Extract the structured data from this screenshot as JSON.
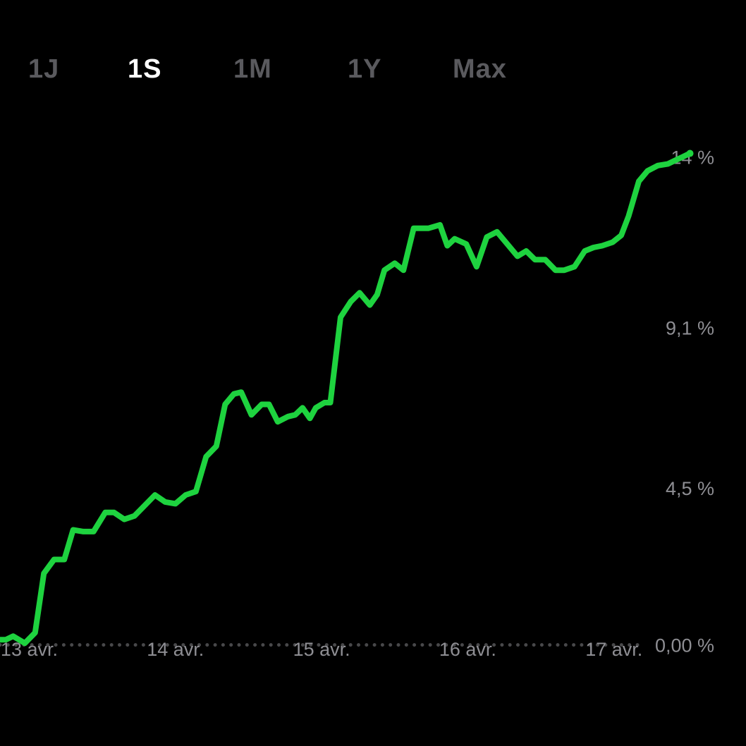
{
  "range_tabs": [
    {
      "label": "1J",
      "active": false
    },
    {
      "label": "1S",
      "active": true
    },
    {
      "label": "1M",
      "active": false
    },
    {
      "label": "1Y",
      "active": false
    },
    {
      "label": "Max",
      "active": false
    }
  ],
  "colors": {
    "background": "#000000",
    "line": "#1ed33f",
    "label": "#8e8e93",
    "tab_inactive": "#5a5a5e",
    "tab_active": "#ffffff",
    "baseline": "#48484a"
  },
  "chart_data": {
    "type": "line",
    "y_tick_labels": [
      "0,00 %",
      "4,5 %",
      "9,1 %",
      "14 %"
    ],
    "y_ticks": [
      0,
      4.5,
      9.1,
      14
    ],
    "ylim": [
      -2.9,
      18.5
    ],
    "x_tick_labels": [
      "13 avr.",
      "14 avr.",
      "15 avr.",
      "16 avr.",
      "17 avr."
    ],
    "x_ticks": [
      0.2,
      1.2,
      2.2,
      3.2,
      4.2
    ],
    "xlim": [
      0,
      4.92
    ],
    "baseline": 0,
    "baseline_style": "dotted",
    "grid": false,
    "series": [
      {
        "x": [
          0.0,
          0.04,
          0.09,
          0.17,
          0.24,
          0.3,
          0.37,
          0.44,
          0.5,
          0.57,
          0.64,
          0.72,
          0.78,
          0.85,
          0.92,
          0.99,
          1.06,
          1.13,
          1.2,
          1.27,
          1.34,
          1.41,
          1.48,
          1.54,
          1.6,
          1.65,
          1.72,
          1.79,
          1.84,
          1.9,
          1.97,
          2.02,
          2.07,
          2.12,
          2.16,
          2.22,
          2.26,
          2.33,
          2.4,
          2.46,
          2.53,
          2.58,
          2.63,
          2.7,
          2.76,
          2.83,
          2.88,
          2.93,
          3.01,
          3.06,
          3.11,
          3.19,
          3.26,
          3.33,
          3.4,
          3.47,
          3.54,
          3.6,
          3.66,
          3.73,
          3.8,
          3.86,
          3.93,
          4.0,
          4.06,
          4.12,
          4.19,
          4.25,
          4.3,
          4.37,
          4.43,
          4.5,
          4.57,
          4.62,
          4.67,
          4.72
        ],
        "y": [
          0.15,
          0.15,
          0.25,
          0.05,
          0.35,
          2.05,
          2.45,
          2.45,
          3.3,
          3.25,
          3.25,
          3.8,
          3.8,
          3.6,
          3.7,
          4.0,
          4.3,
          4.1,
          4.05,
          4.3,
          4.4,
          5.4,
          5.7,
          6.9,
          7.2,
          7.25,
          6.6,
          6.9,
          6.9,
          6.4,
          6.55,
          6.6,
          6.8,
          6.5,
          6.8,
          6.95,
          6.95,
          9.4,
          9.85,
          10.1,
          9.75,
          10.05,
          10.75,
          10.95,
          10.75,
          11.95,
          11.95,
          11.95,
          12.05,
          11.45,
          11.65,
          11.5,
          10.85,
          11.7,
          11.85,
          11.5,
          11.15,
          11.3,
          11.05,
          11.05,
          10.75,
          10.75,
          10.85,
          11.3,
          11.4,
          11.45,
          11.55,
          11.75,
          12.3,
          13.3,
          13.6,
          13.75,
          13.8,
          13.9,
          14.0,
          14.1
        ]
      }
    ]
  }
}
